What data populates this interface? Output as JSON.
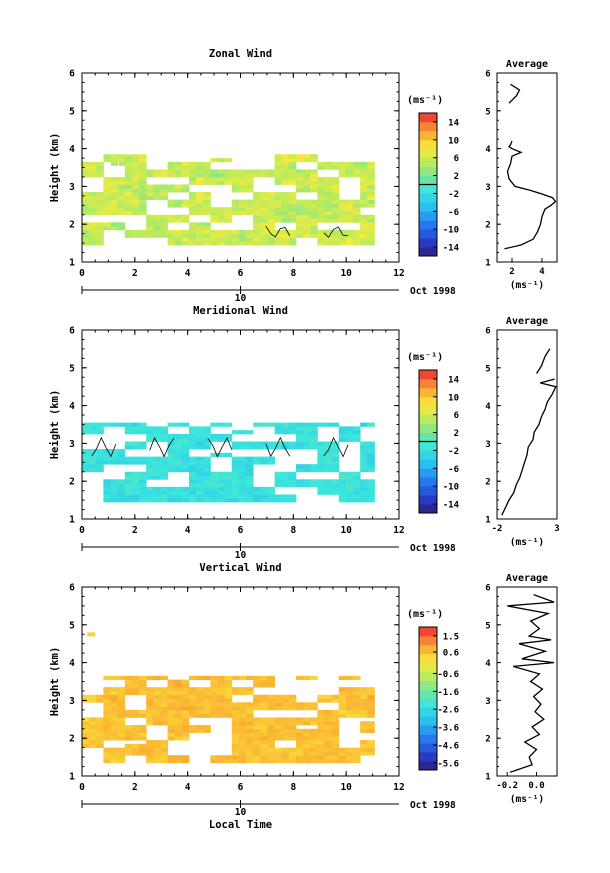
{
  "chart_data": [
    {
      "type": "heatmap",
      "title": "Zonal Wind",
      "xlabel": "",
      "ylabel": "Height (km)",
      "xlim": [
        0,
        12
      ],
      "ylim": [
        1,
        6
      ],
      "x_ticks": [
        "0",
        "2",
        "4",
        "6",
        "8",
        "10",
        "12"
      ],
      "y_ticks": [
        "1",
        "2",
        "3",
        "4",
        "5",
        "6"
      ],
      "date_axis": {
        "label": "Oct 1998",
        "tick": "10"
      },
      "data_extent": {
        "time": [
          0,
          10.8
        ],
        "height": [
          1.45,
          3.8
        ]
      },
      "colorbar": {
        "unit": "(ms⁻¹)",
        "ticks": [
          "14",
          "10",
          "6",
          "2",
          "-2",
          "-6",
          "-10",
          "-14"
        ],
        "range": [
          -16,
          16
        ]
      },
      "avg_profile": {
        "title": "Average",
        "xlabel": "(ms⁻¹)",
        "x_ticks": [
          "2",
          "4"
        ],
        "xlim": [
          1,
          5
        ],
        "height": [
          1.35,
          1.45,
          1.6,
          1.8,
          2.0,
          2.2,
          2.4,
          2.5,
          2.6,
          2.7,
          2.8,
          2.9,
          3.0,
          3.2,
          3.4,
          3.6,
          3.8,
          3.9,
          4.0,
          4.05,
          4.1,
          4.2
        ],
        "value": [
          1.5,
          2.6,
          3.4,
          3.7,
          3.9,
          4.0,
          4.2,
          4.6,
          4.9,
          4.7,
          4.0,
          3.2,
          2.2,
          1.8,
          1.7,
          1.9,
          2.0,
          2.6,
          2.0,
          1.8,
          1.9,
          2.0
        ],
        "height2": [
          5.2,
          5.4,
          5.55,
          5.7
        ],
        "value2": [
          1.8,
          2.3,
          2.5,
          1.9
        ]
      }
    },
    {
      "type": "heatmap",
      "title": "Meridional Wind",
      "xlabel": "",
      "ylabel": "Height (km)",
      "xlim": [
        0,
        12
      ],
      "ylim": [
        1,
        6
      ],
      "x_ticks": [
        "0",
        "2",
        "4",
        "6",
        "8",
        "10",
        "12"
      ],
      "y_ticks": [
        "1",
        "2",
        "3",
        "4",
        "5",
        "6"
      ],
      "date_axis": {
        "label": "Oct 1998",
        "tick": "10"
      },
      "data_extent": {
        "time": [
          0,
          10.8
        ],
        "height": [
          1.45,
          3.55
        ]
      },
      "colorbar": {
        "unit": "(ms⁻¹)",
        "ticks": [
          "14",
          "10",
          "6",
          "2",
          "-2",
          "-6",
          "-10",
          "-14"
        ],
        "range": [
          -16,
          16
        ]
      },
      "avg_profile": {
        "title": "Average",
        "xlabel": "(ms⁻¹)",
        "x_ticks": [
          "-2",
          "3"
        ],
        "xlim": [
          -2,
          3
        ],
        "height": [
          1.1,
          1.3,
          1.5,
          1.7,
          1.9,
          2.1,
          2.3,
          2.5,
          2.7,
          2.9,
          3.1,
          3.3,
          3.5,
          3.7,
          3.9,
          4.1,
          4.3,
          4.5,
          4.6,
          4.7
        ],
        "value": [
          -1.6,
          -1.3,
          -1.0,
          -0.6,
          -0.4,
          -0.1,
          0.1,
          0.3,
          0.5,
          0.6,
          1.0,
          1.1,
          1.5,
          1.7,
          2.0,
          2.2,
          2.6,
          2.9,
          1.6,
          2.8
        ],
        "height2": [
          4.85,
          5.05,
          5.3,
          5.5
        ],
        "value2": [
          1.3,
          1.7,
          2.0,
          2.4
        ]
      }
    },
    {
      "type": "heatmap",
      "title": "Vertical Wind",
      "xlabel": "Local Time",
      "ylabel": "Height (km)",
      "xlim": [
        0,
        12
      ],
      "ylim": [
        1,
        6
      ],
      "x_ticks": [
        "0",
        "2",
        "4",
        "6",
        "8",
        "10",
        "12"
      ],
      "y_ticks": [
        "1",
        "2",
        "3",
        "4",
        "5",
        "6"
      ],
      "date_axis": {
        "label": "Oct 1998",
        "tick": "10"
      },
      "data_extent": {
        "time": [
          0,
          10.8
        ],
        "height": [
          1.35,
          3.65
        ]
      },
      "colorbar": {
        "unit": "(ms⁻¹)",
        "ticks": [
          "1.5",
          "0.6",
          "-0.6",
          "-1.6",
          "-2.6",
          "-3.6",
          "-4.6",
          "-5.6"
        ],
        "range": [
          -6,
          2
        ]
      },
      "avg_profile": {
        "title": "Average",
        "xlabel": "(ms⁻¹)",
        "x_ticks": [
          "-0.2",
          "0.0"
        ],
        "xlim": [
          -0.27,
          0.14
        ],
        "height": [
          1.1,
          1.3,
          1.5,
          1.7,
          1.9,
          2.1,
          2.3,
          2.5,
          2.7,
          2.9,
          3.1,
          3.3,
          3.5,
          3.7,
          3.9,
          4.0,
          4.1,
          4.3,
          4.5,
          4.6,
          4.7,
          4.9,
          5.1,
          5.3,
          5.5,
          5.6,
          5.8
        ],
        "value": [
          -0.18,
          -0.03,
          -0.05,
          0.0,
          -0.08,
          0.02,
          -0.03,
          0.05,
          -0.01,
          0.03,
          -0.02,
          0.04,
          -0.04,
          0.02,
          -0.16,
          0.12,
          -0.1,
          0.06,
          -0.12,
          0.1,
          -0.05,
          0.02,
          -0.04,
          0.08,
          -0.2,
          0.12,
          -0.02
        ]
      }
    }
  ]
}
